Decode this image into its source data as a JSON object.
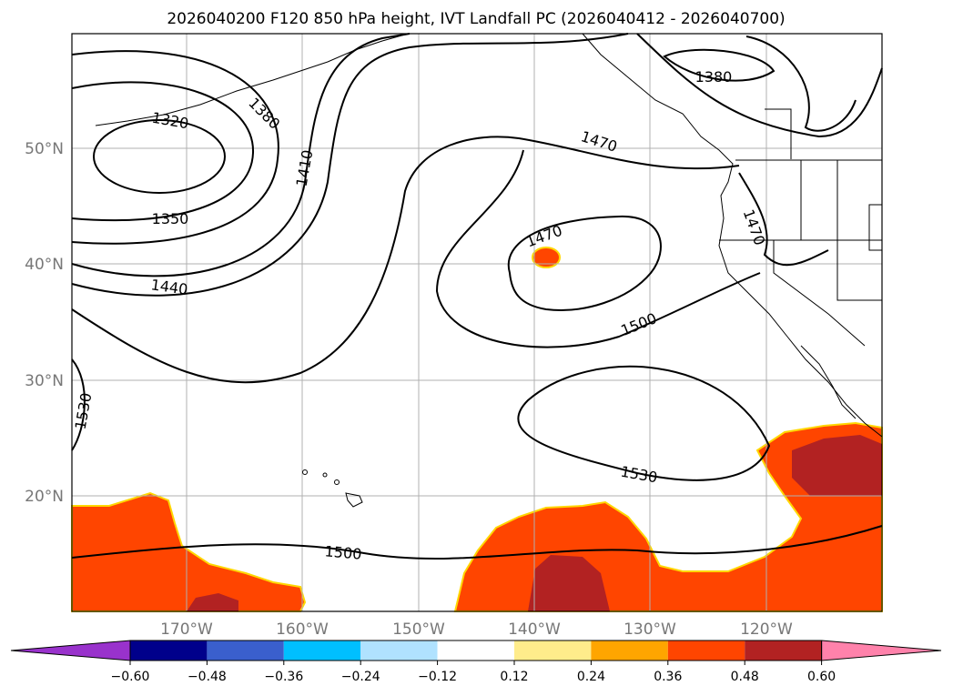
{
  "title": "2026040200 F120 850 hPa height, IVT Landfall PC (2026040412 - 2026040700)",
  "lat_ticks": [
    "50°N",
    "40°N",
    "30°N",
    "20°N"
  ],
  "lon_ticks": [
    "170°W",
    "160°W",
    "150°W",
    "140°W",
    "130°W",
    "120°W"
  ],
  "contour_labels": [
    "1320",
    "1350",
    "1380",
    "1410",
    "1440",
    "1470",
    "1470",
    "1470",
    "1500",
    "1500",
    "1530",
    "1530",
    "1380"
  ],
  "colorbar": {
    "ticks": [
      "−0.60",
      "−0.48",
      "−0.36",
      "−0.24",
      "−0.12",
      "0.12",
      "0.24",
      "0.36",
      "0.48",
      "0.60"
    ],
    "colors": [
      "#9932CC",
      "#00008B",
      "#3A5FCD",
      "#00BFFF",
      "#B0E2FF",
      "#FFFFFF",
      "#FFEC8B",
      "#FFA500",
      "#FF4500",
      "#B22222",
      "#FF82AB"
    ]
  },
  "fill_colors": {
    "orange": "#FF4500",
    "dark_red": "#B22222",
    "yellow": "#FFEC8B"
  }
}
